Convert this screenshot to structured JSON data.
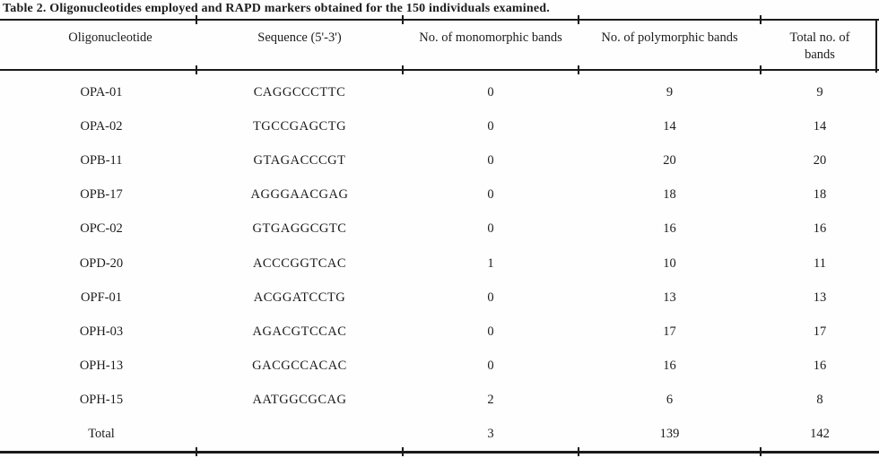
{
  "table": {
    "title": "Table 2. Oligonucleotides employed and RAPD markers obtained for the 150 individuals examined.",
    "columns": [
      "Oligonucleotide",
      "Sequence (5'-3')",
      "No. of monomorphic bands",
      "No. of polymorphic bands",
      "Total no. of bands"
    ],
    "rows": [
      {
        "oligonucleotide": "OPA-01",
        "sequence": "CAGGCCCTTC",
        "monomorphic": "0",
        "polymorphic": "9",
        "total": "9"
      },
      {
        "oligonucleotide": "OPA-02",
        "sequence": "TGCCGAGCTG",
        "monomorphic": "0",
        "polymorphic": "14",
        "total": "14"
      },
      {
        "oligonucleotide": "OPB-11",
        "sequence": "GTAGACCCGT",
        "monomorphic": "0",
        "polymorphic": "20",
        "total": "20"
      },
      {
        "oligonucleotide": "OPB-17",
        "sequence": "AGGGAACGAG",
        "monomorphic": "0",
        "polymorphic": "18",
        "total": "18"
      },
      {
        "oligonucleotide": "OPC-02",
        "sequence": "GTGAGGCGTC",
        "monomorphic": "0",
        "polymorphic": "16",
        "total": "16"
      },
      {
        "oligonucleotide": "OPD-20",
        "sequence": "ACCCGGTCAC",
        "monomorphic": "1",
        "polymorphic": "10",
        "total": "11"
      },
      {
        "oligonucleotide": "OPF-01",
        "sequence": "ACGGATCCTG",
        "monomorphic": "0",
        "polymorphic": "13",
        "total": "13"
      },
      {
        "oligonucleotide": "OPH-03",
        "sequence": "AGACGTCCAC",
        "monomorphic": "0",
        "polymorphic": "17",
        "total": "17"
      },
      {
        "oligonucleotide": "OPH-13",
        "sequence": "GACGCCACAC",
        "monomorphic": "0",
        "polymorphic": "16",
        "total": "16"
      },
      {
        "oligonucleotide": "OPH-15",
        "sequence": "AATGGCGCAG",
        "monomorphic": "2",
        "polymorphic": "6",
        "total": "8"
      }
    ],
    "total_row": {
      "label": "Total",
      "sequence": "",
      "monomorphic": "3",
      "polymorphic": "139",
      "total": "142"
    }
  },
  "colors": {
    "text": "#1c1c1c",
    "rule": "#1a1a1a",
    "background": "#fefefe"
  }
}
